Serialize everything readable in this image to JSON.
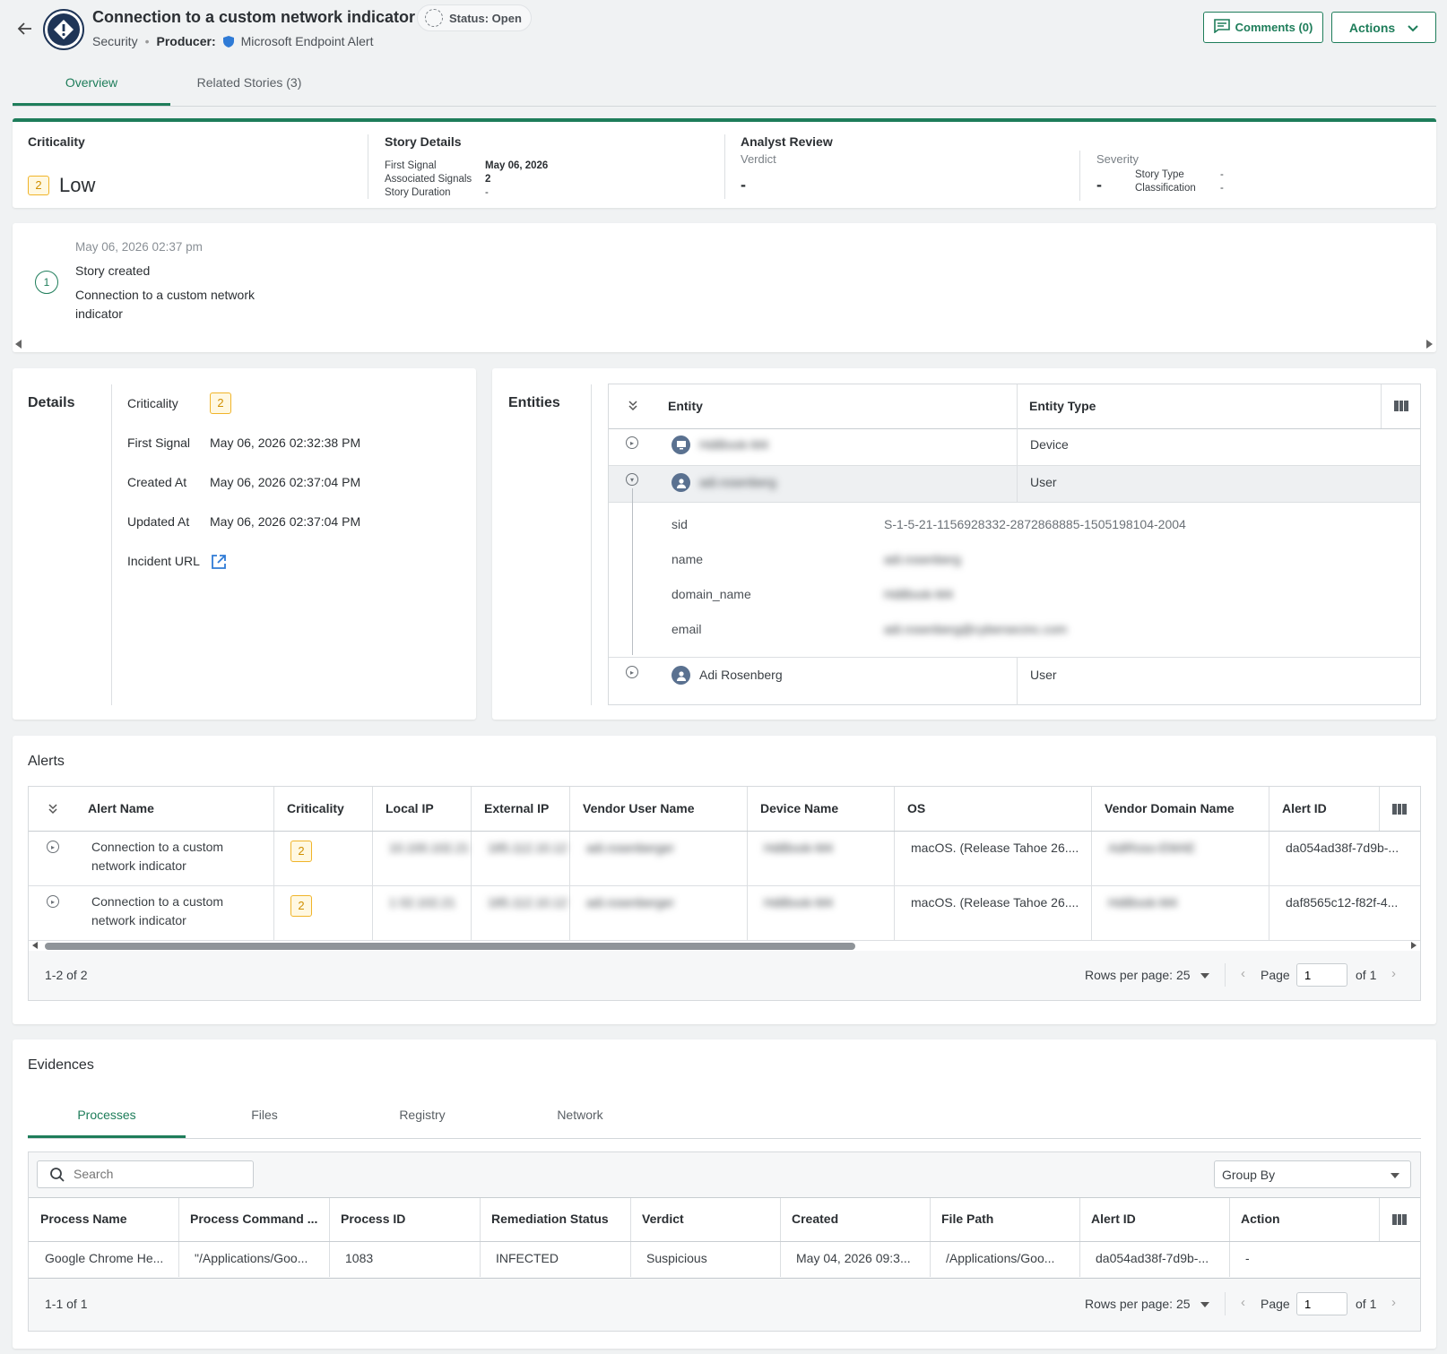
{
  "header": {
    "title": "Connection to a custom network indicator",
    "status": "Status: Open",
    "category": "Security",
    "producer_label": "Producer:",
    "producer": "Microsoft Endpoint Alert",
    "comments_label": "Comments (0)",
    "actions_label": "Actions"
  },
  "tabs": [
    "Overview",
    "Related Stories (3)"
  ],
  "summary": {
    "criticality_title": "Criticality",
    "criticality_value": "2",
    "criticality_label": "Low",
    "story_details_title": "Story Details",
    "first_signal_label": "First Signal",
    "first_signal_value": "May 06, 2026",
    "assoc_signals_label": "Associated Signals",
    "assoc_signals_value": "2",
    "story_duration_label": "Story Duration",
    "story_duration_value": "-",
    "analyst_review_title": "Analyst Review",
    "verdict_label": "Verdict",
    "verdict_value": "-",
    "severity_label": "Severity",
    "severity_value": "-",
    "story_type_label": "Story Type",
    "story_type_value": "-",
    "classification_label": "Classification",
    "classification_value": "-"
  },
  "timeline": {
    "step": "1",
    "time": "May 06, 2026 02:37 pm",
    "event": "Story created",
    "desc_line1": "Connection to a custom network",
    "desc_line2": "indicator"
  },
  "details": {
    "title": "Details",
    "criticality_label": "Criticality",
    "criticality_value": "2",
    "first_signal_label": "First Signal",
    "first_signal_value": "May 06, 2026 02:32:38 PM",
    "created_label": "Created At",
    "created_value": "May 06, 2026 02:37:04 PM",
    "updated_label": "Updated At",
    "updated_value": "May 06, 2026 02:37:04 PM",
    "incident_url_label": "Incident URL"
  },
  "entities": {
    "title": "Entities",
    "col_entity": "Entity",
    "col_type": "Entity Type",
    "rows": [
      {
        "name": "HdiBook-M4",
        "type": "Device"
      },
      {
        "name": "adi.rosenberg",
        "type": "User"
      },
      {
        "name": "Adi Rosenberg",
        "type": "User"
      }
    ],
    "expanded": [
      {
        "key": "sid",
        "value": "S-1-5-21-1156928332-2872868885-1505198104-2004"
      },
      {
        "key": "name",
        "value": "adi.rosenberg"
      },
      {
        "key": "domain_name",
        "value": "HdiBook-M4"
      },
      {
        "key": "email",
        "value": "adi.rosenberg@cybersecinc.com"
      }
    ]
  },
  "alerts": {
    "title": "Alerts",
    "columns": [
      "Alert Name",
      "Criticality",
      "Local IP",
      "External IP",
      "Vendor User Name",
      "Device Name",
      "OS",
      "Vendor Domain Name",
      "Alert ID"
    ],
    "rows": [
      {
        "name1": "Connection to a custom",
        "name2": "network indicator",
        "crit": "2",
        "local": "10.100.102.21",
        "external": "185.112.10.12",
        "user": "adi.rosenberger",
        "device": "HdiBook-M4",
        "os": "macOS. (Release Tahoe 26....",
        "domain": "AdiRoso-EMAE",
        "id": "da054ad38f-7d9b-..."
      },
      {
        "name1": "Connection to a custom",
        "name2": "network indicator",
        "crit": "2",
        "local": "1 02.102.21",
        "external": "185.112.10.12",
        "user": "adi.rosenberger",
        "device": "HdiBook-M4",
        "os": "macOS. (Release Tahoe 26....",
        "domain": "HdiBook-M4",
        "id": "daf8565c12-f82f-4..."
      }
    ],
    "range": "1-2 of 2",
    "rows_per_page": "Rows per page: 25",
    "page_label": "Page",
    "page_value": "1",
    "of_label": "of 1"
  },
  "evidences": {
    "title": "Evidences",
    "tabs": [
      "Processes",
      "Files",
      "Registry",
      "Network"
    ],
    "search_placeholder": "Search",
    "group_by": "Group By",
    "columns": [
      "Process Name",
      "Process Command ...",
      "Process ID",
      "Remediation Status",
      "Verdict",
      "Created",
      "File Path",
      "Alert ID",
      "Action"
    ],
    "row": [
      "Google Chrome He...",
      "\"/Applications/Goo...",
      "1083",
      "INFECTED",
      "Suspicious",
      "May 04, 2026 09:3...",
      "/Applications/Goo...",
      "da054ad38f-7d9b-...",
      "-"
    ],
    "range": "1-1 of 1",
    "rows_per_page": "Rows per page: 25",
    "page_label": "Page",
    "page_value": "1",
    "of_label": "of 1"
  }
}
